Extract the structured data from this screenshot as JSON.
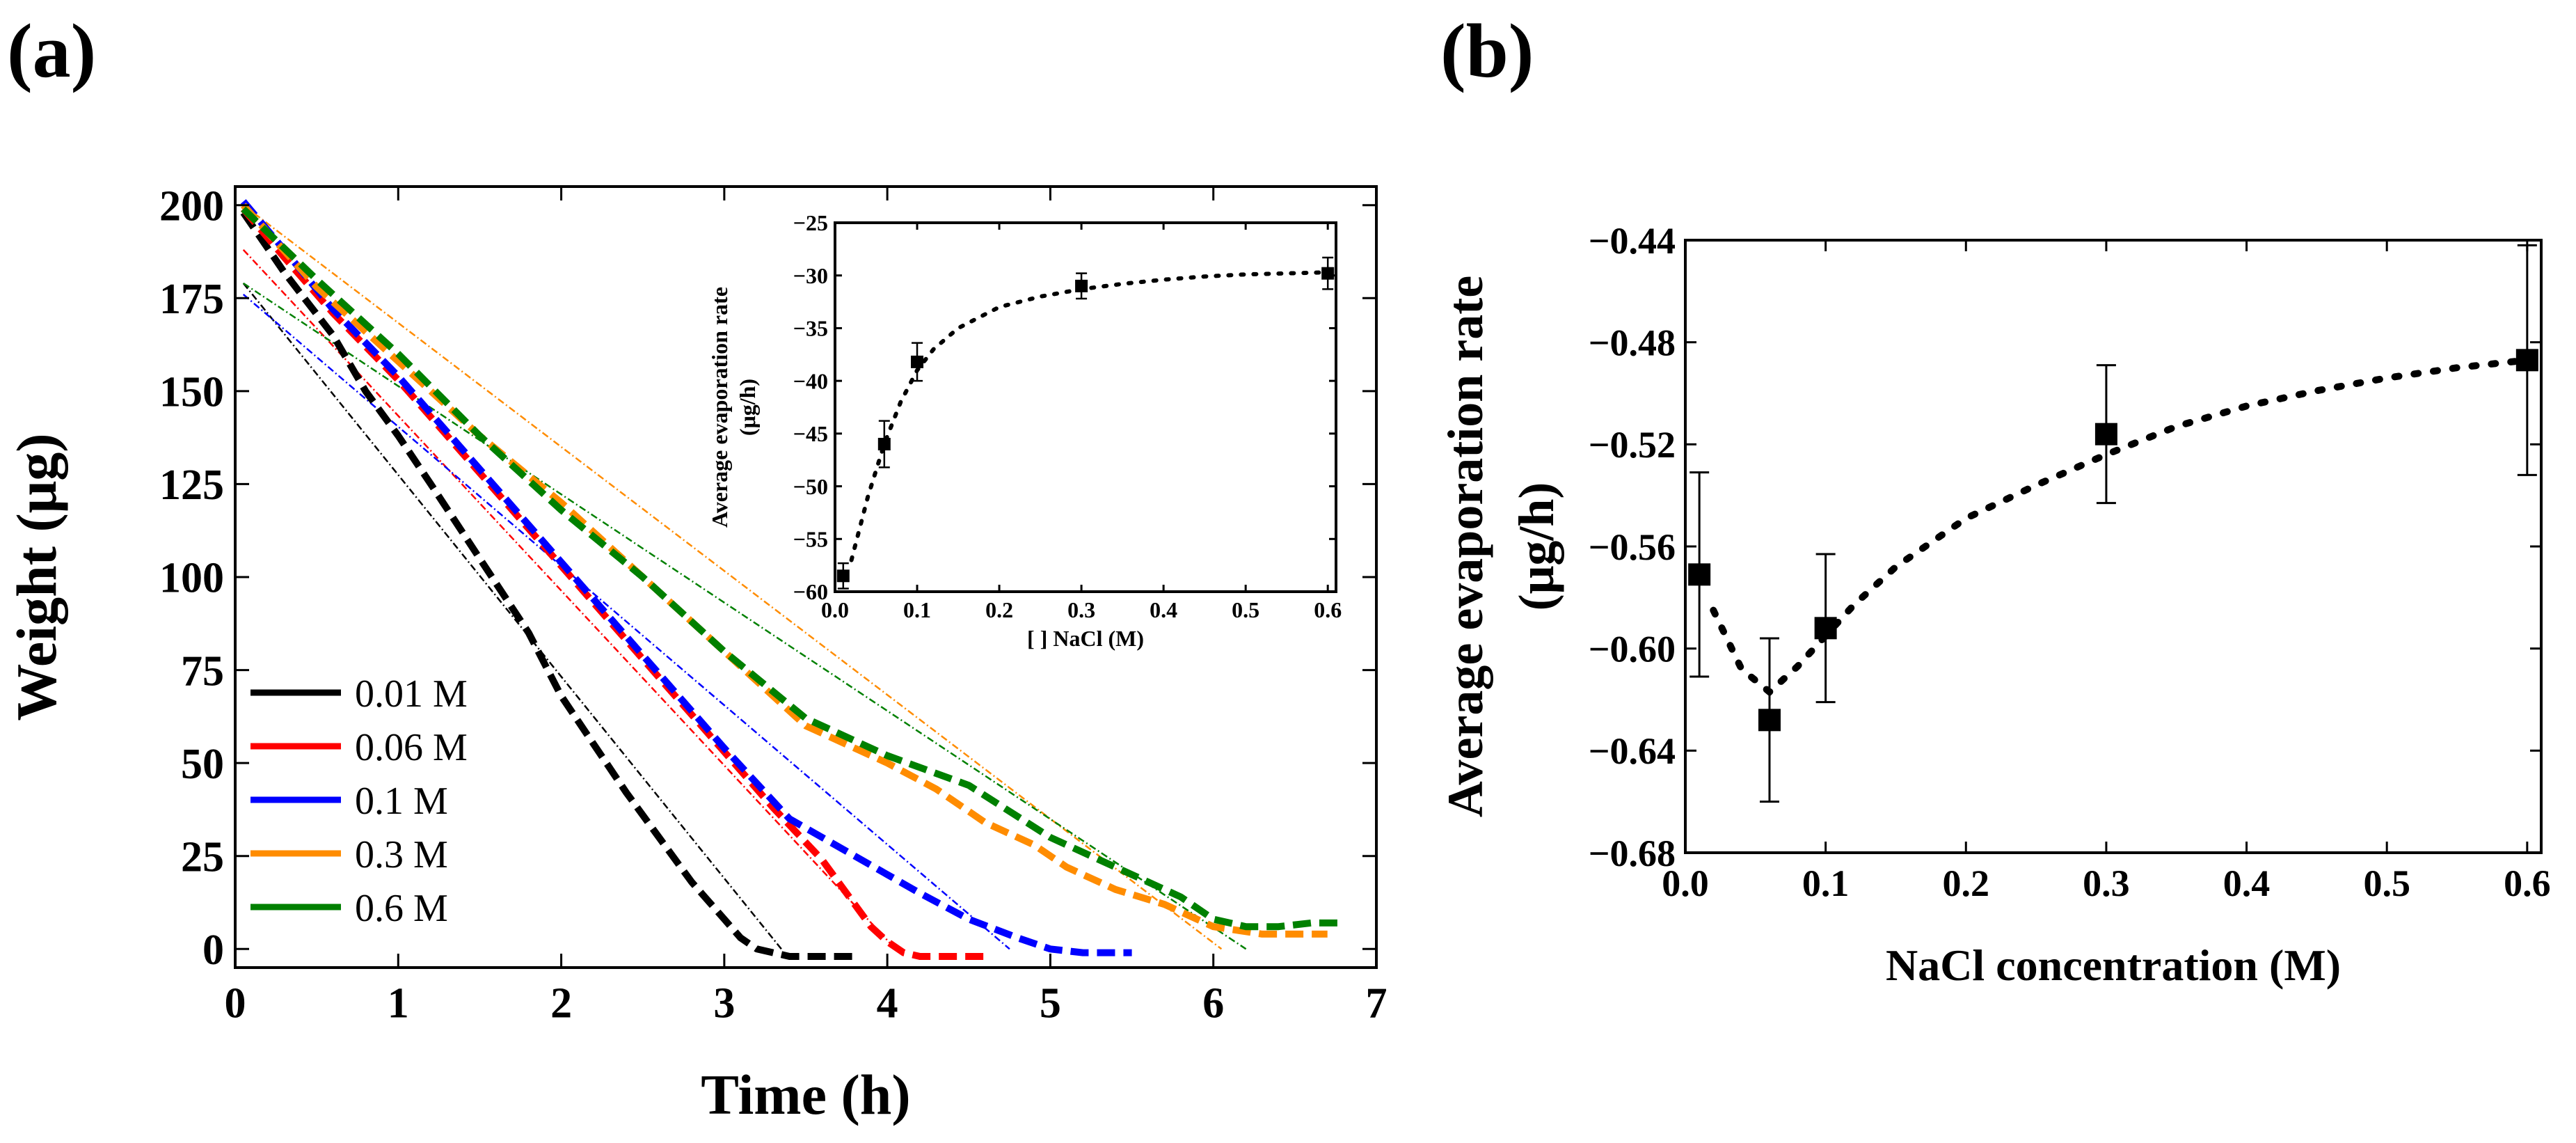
{
  "panel_labels": {
    "a": "(a)",
    "b": "(b)"
  },
  "chart_data": [
    {
      "id": "a-main",
      "type": "line",
      "title": "",
      "xlabel": "Time (h)",
      "ylabel": "Weight (μg)",
      "xlim": [
        0,
        7
      ],
      "ylim": [
        -5,
        205
      ],
      "xticks": [
        0,
        1,
        2,
        3,
        4,
        5,
        6,
        7
      ],
      "yticks": [
        0,
        25,
        50,
        75,
        100,
        125,
        150,
        175,
        200
      ],
      "legend_position": "bottom-left",
      "series": [
        {
          "name": "0.01 M",
          "color": "#000000",
          "x": [
            0.05,
            0.3,
            0.6,
            0.8,
            1.0,
            1.2,
            1.5,
            1.8,
            2.0,
            2.2,
            2.4,
            2.6,
            2.8,
            3.0,
            3.1,
            3.2,
            3.3,
            3.4,
            3.6,
            3.8
          ],
          "y": [
            198,
            182,
            165,
            150,
            138,
            125,
            105,
            85,
            68,
            55,
            42,
            30,
            18,
            8,
            3,
            0,
            -1,
            -2,
            -2,
            -2
          ],
          "fit": {
            "x": [
              0.05,
              3.35
            ],
            "y": [
              179,
              0
            ]
          }
        },
        {
          "name": "0.06 M",
          "color": "#ff0000",
          "x": [
            0.05,
            0.3,
            0.6,
            1.0,
            1.4,
            1.8,
            2.2,
            2.6,
            3.0,
            3.3,
            3.6,
            3.8,
            3.9,
            4.0,
            4.1,
            4.2,
            4.4,
            4.6
          ],
          "y": [
            199,
            186,
            171,
            153,
            133,
            113,
            93,
            73,
            53,
            38,
            24,
            12,
            6,
            2,
            -1,
            -2,
            -2,
            -2
          ],
          "fit": {
            "x": [
              0.05,
              4.05
            ],
            "y": [
              188,
              0
            ]
          }
        },
        {
          "name": "0.1 M",
          "color": "#0000ff",
          "x": [
            0.05,
            0.3,
            0.6,
            1.0,
            1.4,
            1.8,
            2.2,
            2.6,
            3.0,
            3.4,
            3.8,
            4.2,
            4.5,
            4.8,
            5.0,
            5.2,
            5.5
          ],
          "y": [
            201,
            188,
            172,
            154,
            134,
            114,
            94,
            74,
            54,
            35,
            25,
            15,
            8,
            3,
            0,
            -1,
            -1
          ],
          "fit": {
            "x": [
              0.05,
              4.75
            ],
            "y": [
              176,
              0
            ]
          }
        },
        {
          "name": "0.3 M",
          "color": "#ff8c00",
          "x": [
            0.05,
            0.5,
            1.0,
            1.5,
            2.0,
            2.5,
            3.0,
            3.5,
            4.0,
            4.3,
            4.6,
            4.9,
            5.1,
            5.4,
            5.7,
            6.0,
            6.3,
            6.7
          ],
          "y": [
            200,
            178,
            158,
            138,
            120,
            100,
            80,
            60,
            50,
            43,
            34,
            28,
            22,
            16,
            12,
            6,
            4,
            4
          ],
          "fit": {
            "x": [
              0.05,
              6.05
            ],
            "y": [
              200,
              0
            ]
          }
        },
        {
          "name": "0.6 M",
          "color": "#008000",
          "x": [
            0.05,
            0.5,
            1.0,
            1.5,
            2.0,
            2.5,
            3.0,
            3.5,
            4.0,
            4.5,
            5.0,
            5.5,
            5.8,
            6.0,
            6.2,
            6.4,
            6.6,
            6.8
          ],
          "y": [
            199,
            180,
            160,
            138,
            118,
            100,
            80,
            62,
            52,
            44,
            30,
            20,
            14,
            8,
            6,
            6,
            7,
            7
          ],
          "fit": {
            "x": [
              0.05,
              6.2
            ],
            "y": [
              179,
              0
            ]
          }
        }
      ]
    },
    {
      "id": "a-inset",
      "type": "scatter",
      "title": "",
      "xlabel": "[ ] NaCl (M)",
      "ylabel": "Average evaporation rate (μg/h)",
      "ylabel_lines": [
        "Average evaporation rate",
        "(μg/h)"
      ],
      "xlim": [
        0.0,
        0.61
      ],
      "ylim": [
        -60,
        -25
      ],
      "xticks": [
        0.0,
        0.1,
        0.2,
        0.3,
        0.4,
        0.5,
        0.6
      ],
      "xtick_labels": [
        "0.0",
        "0.1",
        "0.2",
        "0.3",
        "0.4",
        "0.5",
        "0.6"
      ],
      "yticks": [
        -25,
        -30,
        -35,
        -40,
        -45,
        -50,
        -55,
        -60
      ],
      "points": {
        "x": [
          0.01,
          0.06,
          0.1,
          0.3,
          0.6
        ],
        "y": [
          -58.5,
          -46,
          -38.2,
          -31,
          -29.8
        ],
        "err": [
          1.2,
          2.2,
          1.8,
          1.2,
          1.5
        ]
      },
      "fit_curve": {
        "x": [
          0.02,
          0.04,
          0.06,
          0.08,
          0.1,
          0.12,
          0.15,
          0.2,
          0.25,
          0.3,
          0.35,
          0.4,
          0.45,
          0.5,
          0.55,
          0.6
        ],
        "y": [
          -57,
          -51,
          -46,
          -42,
          -39,
          -37,
          -35,
          -33,
          -32,
          -31.3,
          -30.8,
          -30.4,
          -30.1,
          -29.9,
          -29.8,
          -29.7
        ]
      }
    },
    {
      "id": "b",
      "type": "scatter",
      "title": "",
      "xlabel": "NaCl concentration (M)",
      "ylabel": "Average evaporation rate (μg/h)",
      "ylabel_lines": [
        "Average evaporation rate",
        "(μg/h)"
      ],
      "xlim": [
        0.0,
        0.61
      ],
      "ylim": [
        -0.68,
        -0.44
      ],
      "xticks": [
        0.0,
        0.1,
        0.2,
        0.3,
        0.4,
        0.5,
        0.6
      ],
      "xtick_labels": [
        "0.0",
        "0.1",
        "0.2",
        "0.3",
        "0.4",
        "0.5",
        "0.6"
      ],
      "yticks": [
        -0.44,
        -0.48,
        -0.52,
        -0.56,
        -0.6,
        -0.64,
        -0.68
      ],
      "ytick_labels": [
        "−0.44",
        "−0.48",
        "−0.52",
        "−0.56",
        "−0.60",
        "−0.64",
        "−0.68"
      ],
      "points": {
        "x": [
          0.01,
          0.06,
          0.1,
          0.3,
          0.6
        ],
        "y": [
          -0.571,
          -0.628,
          -0.592,
          -0.516,
          -0.487
        ],
        "err": [
          0.04,
          0.032,
          0.029,
          0.027,
          0.045
        ]
      },
      "fit_curve": {
        "x": [
          0.02,
          0.04,
          0.06,
          0.08,
          0.1,
          0.12,
          0.15,
          0.2,
          0.25,
          0.3,
          0.35,
          0.4,
          0.45,
          0.5,
          0.55,
          0.6
        ],
        "y": [
          -0.585,
          -0.608,
          -0.617,
          -0.607,
          -0.595,
          -0.583,
          -0.568,
          -0.549,
          -0.536,
          -0.524,
          -0.513,
          -0.505,
          -0.499,
          -0.494,
          -0.49,
          -0.487
        ]
      }
    }
  ]
}
